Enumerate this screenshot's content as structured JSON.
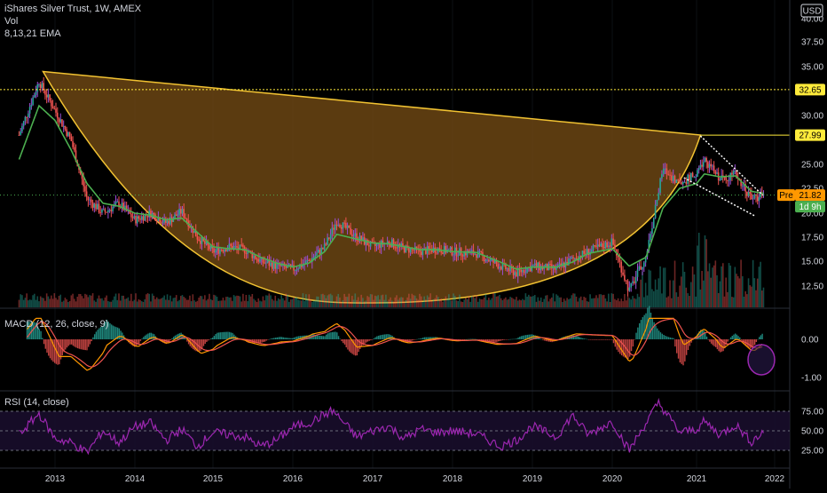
{
  "header": {
    "title": "iShares Silver Trust, 1W, AMEX",
    "vol_label": "Vol",
    "ema_label": "8,13,21 EMA",
    "currency": "USD"
  },
  "macd_panel": {
    "label": "MACD (12, 26, close, 9)"
  },
  "rsi_panel": {
    "label": "RSI (14, close)"
  },
  "price_tags": {
    "resistance": "32.65",
    "neckline": "27.99",
    "pre_label": "Pre",
    "pre_value": "21.82",
    "countdown": "1d 9h"
  },
  "colors": {
    "bull": "#26a69a",
    "bear": "#ef5350",
    "wick_up": "#9c4fd6",
    "ema": "#4caf50",
    "cup": "#f1c232",
    "cup_fill": "#6b4513",
    "macd": "#ff9800",
    "signal": "#ef5350",
    "rsi": "#9c27b0",
    "tag_yellow": "#ffeb3b",
    "tag_orange": "#ff9800",
    "tag_green": "#4caf50"
  },
  "chart_data": [
    {
      "type": "line",
      "panel": "price",
      "x_ticks": [
        "2013",
        "2014",
        "2015",
        "2016",
        "2017",
        "2018",
        "2019",
        "2020",
        "2021",
        "2022"
      ],
      "y_ticks": [
        "12.50",
        "15.00",
        "17.50",
        "20.00",
        "22.50",
        "25.00",
        "30.00",
        "35.00",
        "37.50",
        "40.00"
      ],
      "ylim": [
        10.5,
        41
      ],
      "series": [
        {
          "values": [
            [
              2012.55,
              28.0
            ],
            [
              2012.8,
              33.5
            ],
            [
              2013.0,
              30.5
            ],
            [
              2013.2,
              27.5
            ],
            [
              2013.4,
              21.5
            ],
            [
              2013.6,
              20.0
            ],
            [
              2013.8,
              21.0
            ],
            [
              2014.0,
              19.3
            ],
            [
              2014.2,
              20.0
            ],
            [
              2014.4,
              19.0
            ],
            [
              2014.6,
              20.2
            ],
            [
              2014.8,
              17.5
            ],
            [
              2015.0,
              16.0
            ],
            [
              2015.2,
              16.5
            ],
            [
              2015.4,
              16.2
            ],
            [
              2015.6,
              15.0
            ],
            [
              2015.8,
              14.5
            ],
            [
              2016.0,
              14.2
            ],
            [
              2016.2,
              15.0
            ],
            [
              2016.4,
              16.5
            ],
            [
              2016.55,
              19.2
            ],
            [
              2016.8,
              17.5
            ],
            [
              2017.0,
              16.5
            ],
            [
              2017.2,
              17.0
            ],
            [
              2017.4,
              16.3
            ],
            [
              2017.6,
              16.0
            ],
            [
              2017.8,
              16.3
            ],
            [
              2018.0,
              16.0
            ],
            [
              2018.3,
              15.8
            ],
            [
              2018.6,
              14.5
            ],
            [
              2018.8,
              13.8
            ],
            [
              2019.0,
              14.5
            ],
            [
              2019.3,
              14.2
            ],
            [
              2019.5,
              15.2
            ],
            [
              2019.7,
              16.0
            ],
            [
              2020.0,
              17.0
            ],
            [
              2020.2,
              12.0
            ],
            [
              2020.4,
              15.5
            ],
            [
              2020.6,
              24.5
            ],
            [
              2020.8,
              23.0
            ],
            [
              2021.0,
              24.0
            ],
            [
              2021.1,
              25.5
            ],
            [
              2021.3,
              23.5
            ],
            [
              2021.5,
              24.0
            ],
            [
              2021.7,
              21.5
            ],
            [
              2021.85,
              21.8
            ]
          ]
        },
        {
          "values": [
            [
              2012.55,
              25.5
            ],
            [
              2012.8,
              31.0
            ],
            [
              2013.0,
              29.5
            ],
            [
              2013.2,
              26.5
            ],
            [
              2013.4,
              23.0
            ],
            [
              2013.6,
              21.0
            ],
            [
              2013.8,
              20.7
            ],
            [
              2014.0,
              20.0
            ],
            [
              2014.2,
              19.8
            ],
            [
              2014.4,
              19.3
            ],
            [
              2014.6,
              19.5
            ],
            [
              2014.8,
              18.0
            ],
            [
              2015.0,
              16.5
            ],
            [
              2015.2,
              16.3
            ],
            [
              2015.4,
              16.2
            ],
            [
              2015.6,
              15.4
            ],
            [
              2015.8,
              14.8
            ],
            [
              2016.0,
              14.4
            ],
            [
              2016.2,
              14.8
            ],
            [
              2016.4,
              16.0
            ],
            [
              2016.55,
              17.8
            ],
            [
              2016.8,
              17.3
            ],
            [
              2017.0,
              16.9
            ],
            [
              2017.2,
              16.8
            ],
            [
              2017.4,
              16.5
            ],
            [
              2017.6,
              16.2
            ],
            [
              2017.8,
              16.2
            ],
            [
              2018.0,
              16.0
            ],
            [
              2018.3,
              15.9
            ],
            [
              2018.6,
              14.9
            ],
            [
              2018.8,
              14.2
            ],
            [
              2019.0,
              14.4
            ],
            [
              2019.3,
              14.4
            ],
            [
              2019.5,
              14.9
            ],
            [
              2019.7,
              15.8
            ],
            [
              2020.0,
              16.3
            ],
            [
              2020.2,
              14.5
            ],
            [
              2020.4,
              15.4
            ],
            [
              2020.6,
              20.5
            ],
            [
              2020.8,
              22.5
            ],
            [
              2021.0,
              23.0
            ],
            [
              2021.1,
              24.0
            ],
            [
              2021.3,
              23.7
            ],
            [
              2021.5,
              23.8
            ],
            [
              2021.7,
              22.2
            ],
            [
              2021.85,
              22.0
            ]
          ]
        }
      ],
      "annotations": [
        "cup and handle",
        "descending channel"
      ]
    },
    {
      "type": "bar",
      "panel": "macd",
      "y_ticks": [
        "0.00",
        "-1.00"
      ],
      "ylim": [
        -1.1,
        0.55
      ]
    },
    {
      "type": "line",
      "panel": "rsi",
      "y_ticks": [
        "75.00",
        "50.00",
        "25.00"
      ],
      "ylim": [
        15,
        90
      ],
      "series": [
        {
          "values": [
            [
              2012.55,
              45
            ],
            [
              2012.8,
              72
            ],
            [
              2013.0,
              40
            ],
            [
              2013.2,
              35
            ],
            [
              2013.4,
              22
            ],
            [
              2013.6,
              50
            ],
            [
              2013.8,
              35
            ],
            [
              2014.0,
              55
            ],
            [
              2014.2,
              60
            ],
            [
              2014.4,
              38
            ],
            [
              2014.6,
              52
            ],
            [
              2014.8,
              30
            ],
            [
              2015.0,
              48
            ],
            [
              2015.2,
              45
            ],
            [
              2015.4,
              42
            ],
            [
              2015.6,
              30
            ],
            [
              2015.8,
              38
            ],
            [
              2016.0,
              55
            ],
            [
              2016.2,
              60
            ],
            [
              2016.5,
              76
            ],
            [
              2016.8,
              42
            ],
            [
              2017.0,
              50
            ],
            [
              2017.2,
              56
            ],
            [
              2017.4,
              40
            ],
            [
              2017.6,
              52
            ],
            [
              2017.8,
              48
            ],
            [
              2018.0,
              50
            ],
            [
              2018.3,
              46
            ],
            [
              2018.6,
              30
            ],
            [
              2018.8,
              38
            ],
            [
              2019.0,
              56
            ],
            [
              2019.3,
              42
            ],
            [
              2019.5,
              70
            ],
            [
              2019.7,
              45
            ],
            [
              2020.0,
              62
            ],
            [
              2020.2,
              25
            ],
            [
              2020.4,
              60
            ],
            [
              2020.55,
              86
            ],
            [
              2020.8,
              48
            ],
            [
              2021.0,
              52
            ],
            [
              2021.1,
              62
            ],
            [
              2021.3,
              45
            ],
            [
              2021.5,
              58
            ],
            [
              2021.7,
              36
            ],
            [
              2021.85,
              48
            ]
          ]
        }
      ]
    }
  ]
}
